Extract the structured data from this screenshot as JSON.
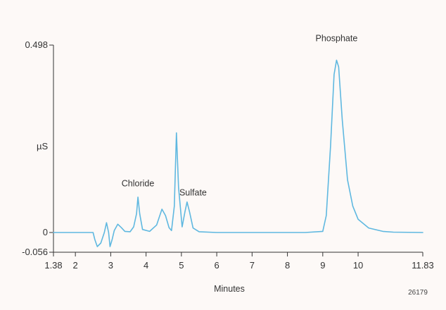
{
  "chart_data": {
    "type": "line",
    "xlabel": "Minutes",
    "ylabel": "µS",
    "xlim": [
      1.38,
      11.83
    ],
    "ylim": [
      -0.056,
      0.498
    ],
    "xticks": [
      "1.38",
      "2",
      "3",
      "4",
      "5",
      "6",
      "7",
      "8",
      "9",
      "10",
      "11.83"
    ],
    "yticks": [
      "0.498",
      "0",
      "-0.056"
    ],
    "line_color": "#5fb8e0",
    "annotations": [
      {
        "text": "Chloride",
        "x": 3.77,
        "y": 0.123
      },
      {
        "text": "Sulfate",
        "x": 5.33,
        "y": 0.098
      },
      {
        "text": "Phosphate",
        "x": 9.39,
        "y": 0.508
      }
    ],
    "figure_id": "26179",
    "series": [
      {
        "points": [
          [
            1.38,
            0.0
          ],
          [
            2.5,
            0.0
          ],
          [
            2.55,
            -0.02
          ],
          [
            2.62,
            -0.04
          ],
          [
            2.72,
            -0.03
          ],
          [
            2.82,
            0.0
          ],
          [
            2.88,
            0.026
          ],
          [
            2.94,
            0.0
          ],
          [
            2.98,
            -0.04
          ],
          [
            3.04,
            -0.02
          ],
          [
            3.1,
            0.005
          ],
          [
            3.2,
            0.022
          ],
          [
            3.3,
            0.013
          ],
          [
            3.4,
            0.003
          ],
          [
            3.55,
            0.002
          ],
          [
            3.65,
            0.015
          ],
          [
            3.73,
            0.05
          ],
          [
            3.77,
            0.094
          ],
          [
            3.82,
            0.05
          ],
          [
            3.9,
            0.008
          ],
          [
            4.1,
            0.003
          ],
          [
            4.3,
            0.02
          ],
          [
            4.45,
            0.062
          ],
          [
            4.55,
            0.045
          ],
          [
            4.65,
            0.013
          ],
          [
            4.72,
            0.005
          ],
          [
            4.8,
            0.07
          ],
          [
            4.86,
            0.265
          ],
          [
            4.92,
            0.12
          ],
          [
            5.02,
            0.015
          ],
          [
            5.1,
            0.055
          ],
          [
            5.16,
            0.081
          ],
          [
            5.23,
            0.055
          ],
          [
            5.33,
            0.012
          ],
          [
            5.5,
            0.002
          ],
          [
            6.0,
            0.0
          ],
          [
            7.0,
            0.0
          ],
          [
            8.5,
            0.0
          ],
          [
            9.0,
            0.003
          ],
          [
            9.1,
            0.045
          ],
          [
            9.22,
            0.23
          ],
          [
            9.32,
            0.42
          ],
          [
            9.39,
            0.458
          ],
          [
            9.45,
            0.44
          ],
          [
            9.55,
            0.3
          ],
          [
            9.7,
            0.14
          ],
          [
            9.85,
            0.07
          ],
          [
            10.0,
            0.035
          ],
          [
            10.3,
            0.012
          ],
          [
            10.7,
            0.003
          ],
          [
            11.0,
            0.001
          ],
          [
            11.83,
            0.0
          ]
        ]
      }
    ]
  }
}
